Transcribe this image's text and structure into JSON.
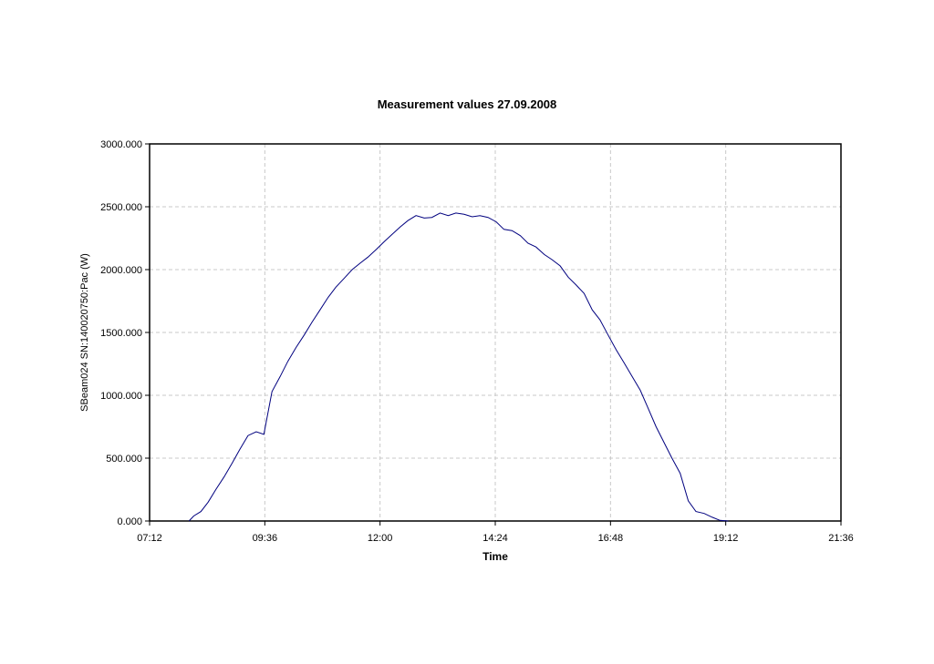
{
  "chart_data": {
    "type": "line",
    "title": "Measurement values 27.09.2008",
    "xlabel": "Time",
    "ylabel": "SBeam024 SN:140020750:Pac (W)",
    "x_unit": "hours",
    "xlim": [
      7.2,
      21.6
    ],
    "ylim": [
      0,
      3000
    ],
    "grid": true,
    "legend": "none",
    "x_ticks": [
      {
        "value": 7.2,
        "label": "07:12"
      },
      {
        "value": 9.6,
        "label": "09:36"
      },
      {
        "value": 12.0,
        "label": "12:00"
      },
      {
        "value": 14.4,
        "label": "14:24"
      },
      {
        "value": 16.8,
        "label": "16:48"
      },
      {
        "value": 19.2,
        "label": "19:12"
      },
      {
        "value": 21.6,
        "label": "21:36"
      }
    ],
    "y_ticks": [
      {
        "value": 0,
        "label": "0.000"
      },
      {
        "value": 500,
        "label": "500.000"
      },
      {
        "value": 1000,
        "label": "1000.000"
      },
      {
        "value": 1500,
        "label": "1500.000"
      },
      {
        "value": 2000,
        "label": "2000.000"
      },
      {
        "value": 2500,
        "label": "2500.000"
      },
      {
        "value": 3000,
        "label": "3000.000"
      }
    ],
    "series": [
      {
        "color": "#00007f",
        "x": [
          8.02,
          8.12,
          8.27,
          8.42,
          8.58,
          8.75,
          8.92,
          9.08,
          9.25,
          9.42,
          9.58,
          9.75,
          9.92,
          10.08,
          10.25,
          10.42,
          10.58,
          10.75,
          10.92,
          11.08,
          11.25,
          11.42,
          11.58,
          11.75,
          11.92,
          12.08,
          12.25,
          12.42,
          12.58,
          12.75,
          12.92,
          13.08,
          13.25,
          13.42,
          13.58,
          13.75,
          13.92,
          14.08,
          14.25,
          14.42,
          14.58,
          14.75,
          14.92,
          15.08,
          15.25,
          15.42,
          15.58,
          15.75,
          15.92,
          16.08,
          16.25,
          16.42,
          16.58,
          16.75,
          16.92,
          17.08,
          17.25,
          17.42,
          17.58,
          17.75,
          17.92,
          18.08,
          18.25,
          18.42,
          18.58,
          18.75,
          18.92,
          19.08,
          19.25
        ],
        "y": [
          0,
          40,
          75,
          150,
          250,
          350,
          460,
          570,
          680,
          710,
          690,
          1030,
          1150,
          1270,
          1380,
          1480,
          1580,
          1680,
          1780,
          1860,
          1930,
          2000,
          2050,
          2100,
          2160,
          2220,
          2280,
          2340,
          2390,
          2430,
          2410,
          2415,
          2450,
          2430,
          2450,
          2440,
          2420,
          2430,
          2415,
          2380,
          2320,
          2310,
          2270,
          2210,
          2180,
          2120,
          2080,
          2030,
          1940,
          1880,
          1810,
          1680,
          1600,
          1480,
          1360,
          1260,
          1150,
          1040,
          900,
          750,
          620,
          500,
          380,
          160,
          75,
          60,
          30,
          5,
          0
        ]
      }
    ]
  }
}
